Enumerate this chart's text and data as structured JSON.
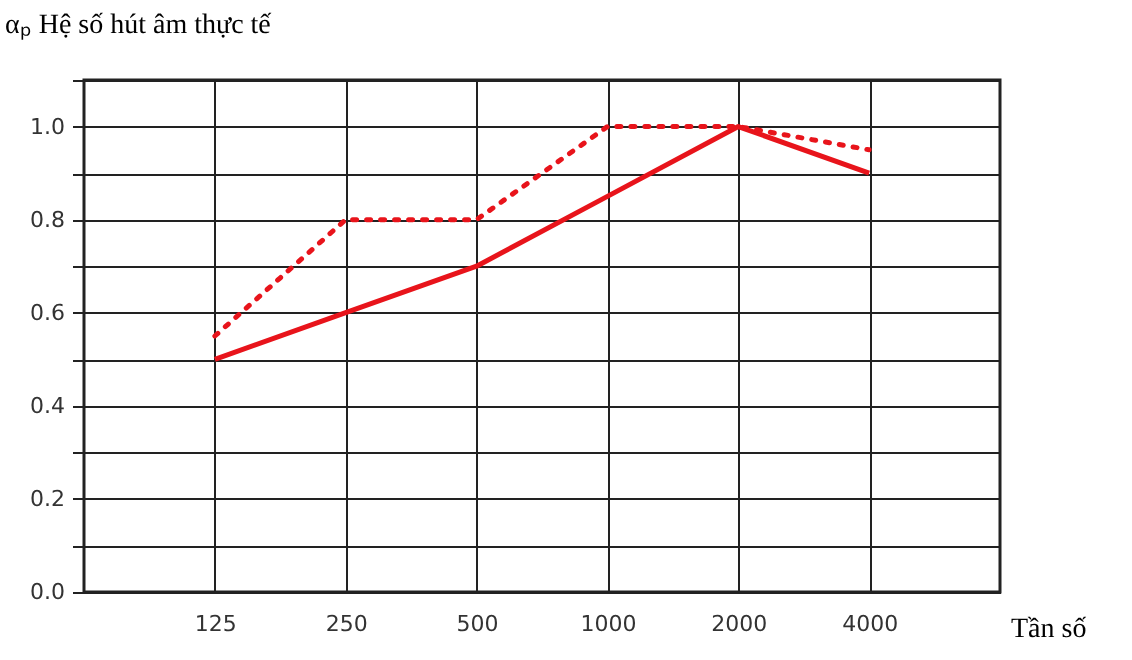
{
  "chart_data": {
    "type": "line",
    "ylabel": "αₚ Hệ số hút âm thực tế",
    "xlabel": "Tần số",
    "categories": [
      "125",
      "250",
      "500",
      "1000",
      "2000",
      "4000"
    ],
    "series": [
      {
        "color": "#e8141b",
        "line_style": "solid",
        "values": [
          0.5,
          0.6,
          0.7,
          0.85,
          1.0,
          0.9
        ]
      },
      {
        "color": "#e8141b",
        "line_style": "dotted",
        "values": [
          0.55,
          0.8,
          0.8,
          1.0,
          1.0,
          0.95
        ]
      }
    ],
    "ylim": [
      0,
      1.1
    ],
    "yticks": [
      {
        "value": 0,
        "label": "0.0"
      },
      {
        "value": 0.1,
        "label": null
      },
      {
        "value": 0.2,
        "label": "0.2"
      },
      {
        "value": 0.3,
        "label": null
      },
      {
        "value": 0.4,
        "label": "0.4"
      },
      {
        "value": 0.5,
        "label": null
      },
      {
        "value": 0.6,
        "label": "0.6"
      },
      {
        "value": 0.7,
        "label": null
      },
      {
        "value": 0.8,
        "label": "0.8"
      },
      {
        "value": 0.9,
        "label": null
      },
      {
        "value": 1.0,
        "label": "1.0"
      },
      {
        "value": 1.1,
        "label": null
      }
    ],
    "grid": true,
    "marker": "none"
  }
}
